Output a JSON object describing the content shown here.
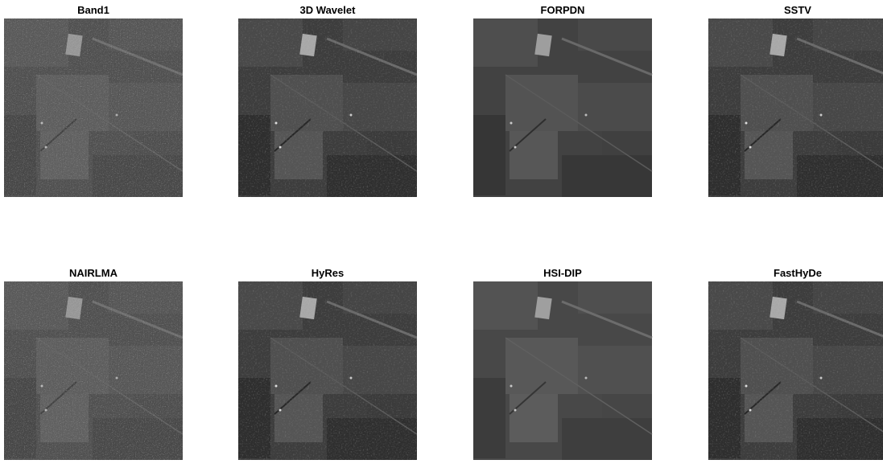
{
  "panels": [
    {
      "title": "Band1"
    },
    {
      "title": "3D Wavelet"
    },
    {
      "title": "FORPDN"
    },
    {
      "title": "SSTV"
    },
    {
      "title": "NAIRLMA"
    },
    {
      "title": "HyRes"
    },
    {
      "title": "HSI-DIP"
    },
    {
      "title": "FastHyDe"
    }
  ]
}
